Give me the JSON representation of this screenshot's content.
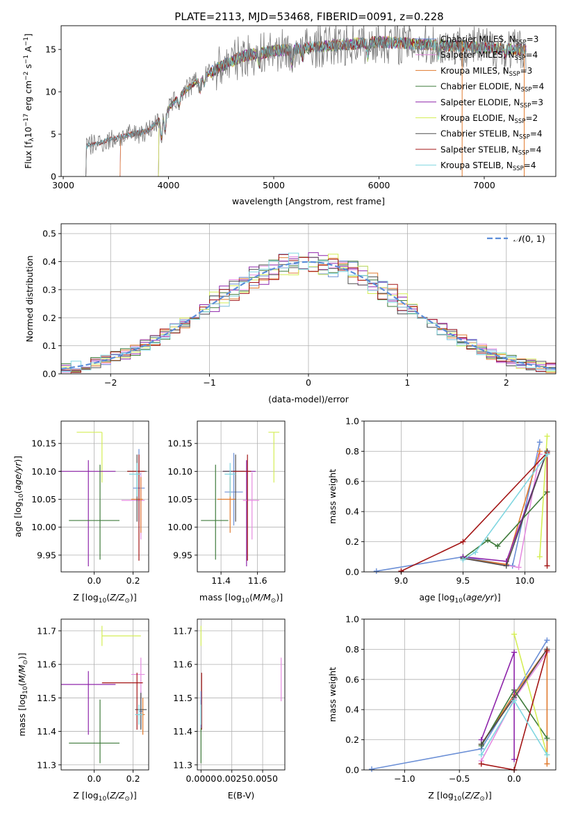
{
  "figure": {
    "title": "PLATE=2113, MJD=53468, FIBERID=0091, z=0.228"
  },
  "colors": {
    "Chabrier MILES": "#6b8fd6",
    "Salpeter MILES": "#e58be0",
    "Kroupa MILES": "#e07a2e",
    "Chabrier ELODIE": "#3e7a3a",
    "Salpeter ELODIE": "#8e24aa",
    "Kroupa ELODIE": "#d4ee55",
    "Chabrier STELIB": "#4d4d4d",
    "Salpeter STELIB": "#a31515",
    "Kroupa STELIB": "#7fd6e0",
    "normal": "#5b8dd9"
  },
  "chart_data": [
    {
      "id": "spectrum",
      "type": "line",
      "xlabel": "wavelength [Angstrom, rest frame]",
      "ylabel": "Flux [f",
      "xlim": [
        2980,
        7680
      ],
      "ylim": [
        0,
        17.8
      ],
      "xticks": [
        3000,
        4000,
        5000,
        6000,
        7000
      ],
      "yticks": [
        0,
        5,
        10,
        15
      ],
      "legend": [
        {
          "name": "Chabrier MILES, N",
          "n": "3"
        },
        {
          "name": "Salpeter MILES, N",
          "n": "4"
        },
        {
          "name": "Kroupa MILES, N",
          "n": "3"
        },
        {
          "name": "Chabrier ELODIE, N",
          "n": "4"
        },
        {
          "name": "Salpeter ELODIE, N",
          "n": "3"
        },
        {
          "name": "Kroupa ELODIE, N",
          "n": "2"
        },
        {
          "name": "Chabrier STELIB, N",
          "n": "4"
        },
        {
          "name": "Salpeter STELIB, N",
          "n": "4"
        },
        {
          "name": "Kroupa STELIB, N",
          "n": "4"
        }
      ],
      "legend_sub": "SSP",
      "legend_loc": "right",
      "continuum": {
        "x": [
          3200,
          3400,
          3600,
          3800,
          3900,
          4000,
          4100,
          4300,
          4500,
          4700,
          5000,
          5300,
          5600,
          6000,
          6400,
          6800,
          7000,
          7300,
          7600
        ],
        "y": [
          3.5,
          4.2,
          4.8,
          5.4,
          6.5,
          8.0,
          9.5,
          11.6,
          13.0,
          14.2,
          14.8,
          15.2,
          15.5,
          15.9,
          15.6,
          15.4,
          15.2,
          15.0,
          15.0
        ]
      }
    },
    {
      "id": "residuals",
      "type": "step",
      "xlabel": "(data-model)/error",
      "ylabel": "Normed distribution",
      "xlim": [
        -2.5,
        2.5
      ],
      "ylim": [
        0,
        0.535
      ],
      "xticks": [
        -2,
        -1,
        0,
        1,
        2
      ],
      "yticks": [
        0.0,
        0.1,
        0.2,
        0.3,
        0.4,
        0.5
      ],
      "grid": true,
      "legend_label": "N(0, 1)",
      "bin_width": 0.1
    },
    {
      "id": "age-vs-Z",
      "type": "errorbar",
      "xlabel": "Z [log",
      "ylabel": "age  [log",
      "xlim": [
        -0.17,
        0.28
      ],
      "ylim": [
        9.92,
        10.19
      ],
      "xticks": [
        0.0,
        0.2
      ],
      "yticks": [
        9.95,
        10.0,
        10.05,
        10.1,
        10.15
      ],
      "points": [
        {
          "s": "Kroupa ELODIE",
          "x": 0.04,
          "y": 10.17,
          "xe": [
            0.13,
            0.0
          ],
          "ye": [
            0.09,
            0.0
          ]
        },
        {
          "s": "Salpeter ELODIE",
          "x": -0.03,
          "y": 10.1,
          "xe": [
            0.15,
            0.14
          ],
          "ye": [
            0.17,
            0.02
          ]
        },
        {
          "s": "Chabrier ELODIE",
          "x": 0.03,
          "y": 10.012,
          "xe": [
            0.16,
            0.1
          ],
          "ye": [
            0.07,
            0.1
          ]
        },
        {
          "s": "Chabrier MILES",
          "x": 0.23,
          "y": 10.07,
          "xe": [
            0.03,
            0.03
          ],
          "ye": [
            0.06,
            0.07
          ]
        },
        {
          "s": "Salpeter MILES",
          "x": 0.24,
          "y": 10.048,
          "xe": [
            0.1,
            0.02
          ],
          "ye": [
            0.07,
            0.05
          ]
        },
        {
          "s": "Kroupa MILES",
          "x": 0.24,
          "y": 10.05,
          "xe": [
            0.05,
            0.01
          ],
          "ye": [
            0.06,
            0.04
          ]
        },
        {
          "s": "Chabrier STELIB",
          "x": 0.22,
          "y": 10.1,
          "xe": [
            0.05,
            0.05
          ],
          "ye": [
            0.09,
            0.03
          ]
        },
        {
          "s": "Salpeter STELIB",
          "x": 0.23,
          "y": 10.1,
          "xe": [
            0.06,
            0.03
          ],
          "ye": [
            0.16,
            0.03
          ]
        },
        {
          "s": "Kroupa STELIB",
          "x": 0.22,
          "y": 10.095,
          "xe": [
            0.04,
            0.02
          ],
          "ye": [
            0.04,
            0.02
          ]
        }
      ]
    },
    {
      "id": "age-vs-mass",
      "type": "errorbar",
      "xlabel": "mass [log",
      "ylabel": "",
      "xlim": [
        11.27,
        11.75
      ],
      "ylim": [
        9.92,
        10.19
      ],
      "xticks": [
        11.4,
        11.6
      ],
      "yticks": [
        9.95,
        10.0,
        10.05,
        10.1,
        10.15
      ],
      "points": [
        {
          "s": "Kroupa ELODIE",
          "x": 11.69,
          "y": 10.17,
          "xe": [
            0.03,
            0.03
          ],
          "ye": [
            0.09,
            0.0
          ]
        },
        {
          "s": "Salpeter ELODIE",
          "x": 11.54,
          "y": 10.1,
          "xe": [
            0.13,
            0.05
          ],
          "ye": [
            0.17,
            0.02
          ]
        },
        {
          "s": "Chabrier ELODIE",
          "x": 11.37,
          "y": 10.012,
          "xe": [
            0.08,
            0.07
          ],
          "ye": [
            0.07,
            0.1
          ]
        },
        {
          "s": "Chabrier MILES",
          "x": 11.47,
          "y": 10.063,
          "xe": [
            0.05,
            0.05
          ],
          "ye": [
            0.06,
            0.07
          ]
        },
        {
          "s": "Salpeter MILES",
          "x": 11.57,
          "y": 10.048,
          "xe": [
            0.05,
            0.04
          ],
          "ye": [
            0.07,
            0.05
          ]
        },
        {
          "s": "Kroupa MILES",
          "x": 11.45,
          "y": 10.05,
          "xe": [
            0.07,
            0.03
          ],
          "ye": [
            0.06,
            0.04
          ]
        },
        {
          "s": "Chabrier STELIB",
          "x": 11.48,
          "y": 10.1,
          "xe": [
            0.07,
            0.05
          ],
          "ye": [
            0.09,
            0.03
          ]
        },
        {
          "s": "Salpeter STELIB",
          "x": 11.545,
          "y": 10.1,
          "xe": [
            0.08,
            0.02
          ],
          "ye": [
            0.16,
            0.03
          ]
        },
        {
          "s": "Kroupa STELIB",
          "x": 11.45,
          "y": 10.095,
          "xe": [
            0.03,
            0.03
          ],
          "ye": [
            0.04,
            0.02
          ]
        }
      ]
    },
    {
      "id": "weight-vs-age",
      "type": "line",
      "xlabel": "age  [log",
      "ylabel": "mass weight",
      "xlim": [
        8.7,
        10.25
      ],
      "ylim": [
        0,
        1.0
      ],
      "xticks": [
        9.0,
        9.5,
        10.0
      ],
      "yticks": [
        0.0,
        0.2,
        0.4,
        0.6,
        0.8,
        1.0
      ],
      "grid": true,
      "series": [
        {
          "s": "Chabrier MILES",
          "x": [
            8.8,
            9.5,
            9.9,
            10.12
          ],
          "y": [
            0.005,
            0.1,
            0.04,
            0.86
          ]
        },
        {
          "s": "Salpeter MILES",
          "x": [
            9.5,
            9.95,
            10.12
          ],
          "y": [
            0.09,
            0.03,
            0.78
          ]
        },
        {
          "s": "Kroupa MILES",
          "x": [
            9.5,
            9.85,
            10.12
          ],
          "y": [
            0.09,
            0.05,
            0.8
          ]
        },
        {
          "s": "Chabrier ELODIE",
          "x": [
            9.5,
            9.7,
            9.78,
            10.18
          ],
          "y": [
            0.09,
            0.21,
            0.17,
            0.53
          ]
        },
        {
          "s": "Salpeter ELODIE",
          "x": [
            9.5,
            9.85,
            10.18
          ],
          "y": [
            0.1,
            0.07,
            0.8
          ]
        },
        {
          "s": "Kroupa ELODIE",
          "x": [
            10.12,
            10.18
          ],
          "y": [
            0.1,
            0.9
          ]
        },
        {
          "s": "Chabrier STELIB",
          "x": [
            9.5,
            9.85,
            10.18
          ],
          "y": [
            0.09,
            0.04,
            0.8
          ]
        },
        {
          "s": "Salpeter STELIB",
          "x": [
            9.0,
            9.5,
            10.18,
            10.18
          ],
          "y": [
            0.005,
            0.2,
            0.79,
            0.04
          ]
        },
        {
          "s": "Kroupa STELIB",
          "x": [
            9.5,
            9.6,
            10.18
          ],
          "y": [
            0.08,
            0.13,
            0.78
          ]
        }
      ]
    },
    {
      "id": "mass-vs-Z",
      "type": "errorbar",
      "xlabel": "Z [log",
      "ylabel": "mass [log",
      "xlim": [
        -0.17,
        0.28
      ],
      "ylim": [
        11.285,
        11.735
      ],
      "xticks": [
        0.0,
        0.2
      ],
      "yticks": [
        11.3,
        11.4,
        11.5,
        11.6,
        11.7
      ],
      "points": [
        {
          "s": "Kroupa ELODIE",
          "x": 0.04,
          "y": 11.685,
          "xe": [
            0.0,
            0.2
          ],
          "ye": [
            0.03,
            0.03
          ]
        },
        {
          "s": "Salpeter ELODIE",
          "x": -0.03,
          "y": 11.54,
          "xe": [
            0.14,
            0.14
          ],
          "ye": [
            0.15,
            0.04
          ]
        },
        {
          "s": "Chabrier ELODIE",
          "x": 0.03,
          "y": 11.365,
          "xe": [
            0.16,
            0.1
          ],
          "ye": [
            0.06,
            0.13
          ]
        },
        {
          "s": "Chabrier MILES",
          "x": 0.24,
          "y": 11.46,
          "xe": [
            0.01,
            0.01
          ],
          "ye": [
            0.05,
            0.06
          ]
        },
        {
          "s": "Salpeter MILES",
          "x": 0.24,
          "y": 11.57,
          "xe": [
            0.05,
            0.02
          ],
          "ye": [
            0.08,
            0.05
          ]
        },
        {
          "s": "Kroupa MILES",
          "x": 0.25,
          "y": 11.45,
          "xe": [
            0.02,
            0.01
          ],
          "ye": [
            0.06,
            0.05
          ]
        },
        {
          "s": "Chabrier STELIB",
          "x": 0.24,
          "y": 11.465,
          "xe": [
            0.03,
            0.03
          ],
          "ye": [
            0.06,
            0.05
          ]
        },
        {
          "s": "Salpeter STELIB",
          "x": 0.22,
          "y": 11.545,
          "xe": [
            0.18,
            0.03
          ],
          "ye": [
            0.14,
            0.03
          ]
        },
        {
          "s": "Kroupa STELIB",
          "x": 0.23,
          "y": 11.45,
          "xe": [
            0.02,
            0.02
          ],
          "ye": [
            0.03,
            0.03
          ]
        }
      ]
    },
    {
      "id": "mass-vs-EBV",
      "type": "errorbar",
      "xlabel": "E(B-V)",
      "ylabel": "",
      "xlim": [
        -0.0003,
        0.0068
      ],
      "ylim": [
        11.285,
        11.735
      ],
      "xticks": [
        0.0,
        0.0025,
        0.005
      ],
      "xticklabels": [
        "0.0000",
        "0.0025",
        "0.0050"
      ],
      "yticks": [
        11.3,
        11.4,
        11.5,
        11.6,
        11.7
      ],
      "points": [
        {
          "s": "Kroupa ELODIE",
          "x": 0.0,
          "y": 11.685,
          "xe": [
            0,
            0
          ],
          "ye": [
            0.03,
            0.03
          ]
        },
        {
          "s": "Salpeter MILES",
          "x": 0.0065,
          "y": 11.57,
          "xe": [
            0,
            0
          ],
          "ye": [
            0.08,
            0.05
          ]
        },
        {
          "s": "Salpeter STELIB",
          "x": 5e-05,
          "y": 11.545,
          "xe": [
            0,
            0
          ],
          "ye": [
            0.14,
            0.03
          ]
        },
        {
          "s": "Chabrier ELODIE",
          "x": 0.0,
          "y": 11.365,
          "xe": [
            0,
            0
          ],
          "ye": [
            0.06,
            0.13
          ]
        },
        {
          "s": "Chabrier MILES",
          "x": 0.0,
          "y": 11.46,
          "xe": [
            0,
            0
          ],
          "ye": [
            0.05,
            0.06
          ]
        },
        {
          "s": "Kroupa STELIB",
          "x": 0.0,
          "y": 11.45,
          "xe": [
            0,
            0
          ],
          "ye": [
            0.03,
            0.03
          ]
        }
      ]
    },
    {
      "id": "weight-vs-Z",
      "type": "line",
      "xlabel": "Z [log",
      "ylabel": "mass weight",
      "xlim": [
        -1.37,
        0.38
      ],
      "ylim": [
        0,
        1.0
      ],
      "xticks": [
        -1.0,
        -0.5,
        0.0
      ],
      "yticks": [
        0.0,
        0.2,
        0.4,
        0.6,
        0.8,
        1.0
      ],
      "grid": true,
      "series": [
        {
          "s": "Chabrier MILES",
          "x": [
            -1.3,
            -0.3,
            0.0,
            0.3
          ],
          "y": [
            0.005,
            0.14,
            0.5,
            0.86
          ]
        },
        {
          "s": "Salpeter MILES",
          "x": [
            -0.3,
            0.0,
            0.3
          ],
          "y": [
            0.06,
            0.47,
            0.78
          ]
        },
        {
          "s": "Kroupa MILES",
          "x": [
            -0.3,
            0.0,
            0.3,
            0.3
          ],
          "y": [
            0.17,
            0.5,
            0.8,
            0.04
          ]
        },
        {
          "s": "Chabrier ELODIE",
          "x": [
            -0.3,
            0.0,
            0.3
          ],
          "y": [
            0.16,
            0.53,
            0.21
          ]
        },
        {
          "s": "Salpeter ELODIE",
          "x": [
            -0.3,
            0.0,
            0.0
          ],
          "y": [
            0.2,
            0.78,
            0.07
          ]
        },
        {
          "s": "Kroupa ELODIE",
          "x": [
            0.0,
            0.3
          ],
          "y": [
            0.9,
            0.1
          ]
        },
        {
          "s": "Chabrier STELIB",
          "x": [
            -0.3,
            0.0,
            0.3
          ],
          "y": [
            0.17,
            0.48,
            0.8
          ]
        },
        {
          "s": "Salpeter STELIB",
          "x": [
            -0.3,
            0.0,
            0.3
          ],
          "y": [
            0.04,
            0.0,
            0.79
          ]
        },
        {
          "s": "Kroupa STELIB",
          "x": [
            -0.3,
            0.0,
            0.3
          ],
          "y": [
            0.1,
            0.46,
            0.1
          ]
        }
      ]
    }
  ]
}
